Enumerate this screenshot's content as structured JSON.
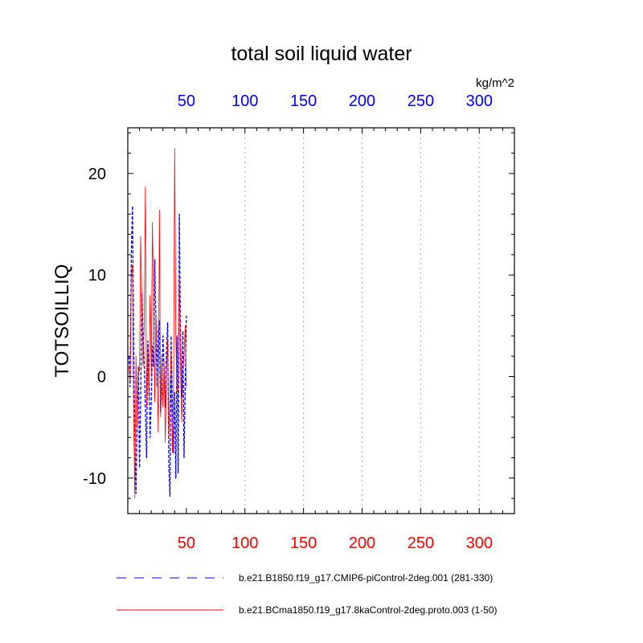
{
  "chart_data": {
    "type": "line",
    "title": "total soil liquid water",
    "units": "kg/m^2",
    "xlabel": "",
    "ylabel": "TOTSOILLIQ",
    "xlim": [
      0,
      330
    ],
    "ylim": [
      -13.5,
      24.5
    ],
    "x_ticks": [
      50,
      100,
      150,
      200,
      250,
      300
    ],
    "x_tick_labels": [
      "50",
      "100",
      "150",
      "200",
      "250",
      "300"
    ],
    "y_ticks": [
      -10,
      0,
      10,
      20
    ],
    "y_tick_labels": [
      "-10",
      "0",
      "10",
      "20"
    ],
    "grid": "vertical dotted",
    "top_axis_color": "#0000ff",
    "bottom_axis_color": "#ff0000",
    "series": [
      {
        "name": "b.e21.B1850.f19_g17.CMIP6-piControl-2deg.001 (281-330)",
        "color": "#0000ff",
        "style": "dashed",
        "x": [
          1,
          2,
          3,
          4,
          5,
          6,
          7,
          8,
          9,
          10,
          11,
          12,
          13,
          14,
          15,
          16,
          17,
          18,
          19,
          20,
          21,
          22,
          23,
          24,
          25,
          26,
          27,
          28,
          29,
          30,
          31,
          32,
          33,
          34,
          35,
          36,
          37,
          38,
          39,
          40,
          41,
          42,
          43,
          44,
          45,
          46,
          47,
          48,
          49,
          50
        ],
        "values": [
          2.0,
          -1.0,
          12.0,
          16.8,
          3.0,
          -6.0,
          -11.5,
          -3.5,
          1.0,
          -9.0,
          -2.0,
          8.2,
          4.0,
          1.5,
          -3.0,
          -8.0,
          3.5,
          1.2,
          -6.0,
          -2.5,
          3.0,
          1.0,
          11.5,
          5.5,
          -1.0,
          4.5,
          5.5,
          -3.5,
          -1.0,
          4.0,
          0.5,
          -3.0,
          2.5,
          5.3,
          -8.5,
          -11.8,
          4.0,
          -3.0,
          -7.5,
          -1.5,
          -10.0,
          4.0,
          -9.5,
          16.0,
          3.5,
          -2.0,
          4.5,
          -8.0,
          -1.0,
          6.0
        ]
      },
      {
        "name": "b.e21.BCma1850.f19_g17.8kaControl-2deg.proto.003 (1-50)",
        "color": "#ff0000",
        "style": "solid",
        "x": [
          1,
          2,
          3,
          4,
          5,
          6,
          7,
          8,
          9,
          10,
          11,
          12,
          13,
          14,
          15,
          16,
          17,
          18,
          19,
          20,
          21,
          22,
          23,
          24,
          25,
          26,
          27,
          28,
          29,
          30,
          31,
          32,
          33,
          34,
          35,
          36,
          37,
          38,
          39,
          40,
          41,
          42,
          43,
          44,
          45,
          46,
          47,
          48,
          49,
          50
        ],
        "values": [
          1.0,
          -0.5,
          10.0,
          11.0,
          -4.0,
          -12.0,
          2.0,
          -5.0,
          1.0,
          0.5,
          13.8,
          7.0,
          1.0,
          5.0,
          18.7,
          -3.0,
          3.0,
          -2.0,
          8.0,
          0.0,
          15.2,
          7.0,
          -2.5,
          6.0,
          1.5,
          -5.5,
          16.4,
          -4.0,
          2.0,
          -3.0,
          1.5,
          -6.5,
          0.5,
          3.5,
          -6.0,
          -1.0,
          2.5,
          -7.5,
          -2.0,
          22.5,
          4.0,
          -1.5,
          -1.0,
          10.0,
          1.0,
          -4.5,
          0.5,
          2.0,
          5.0,
          -1.0
        ]
      }
    ]
  }
}
